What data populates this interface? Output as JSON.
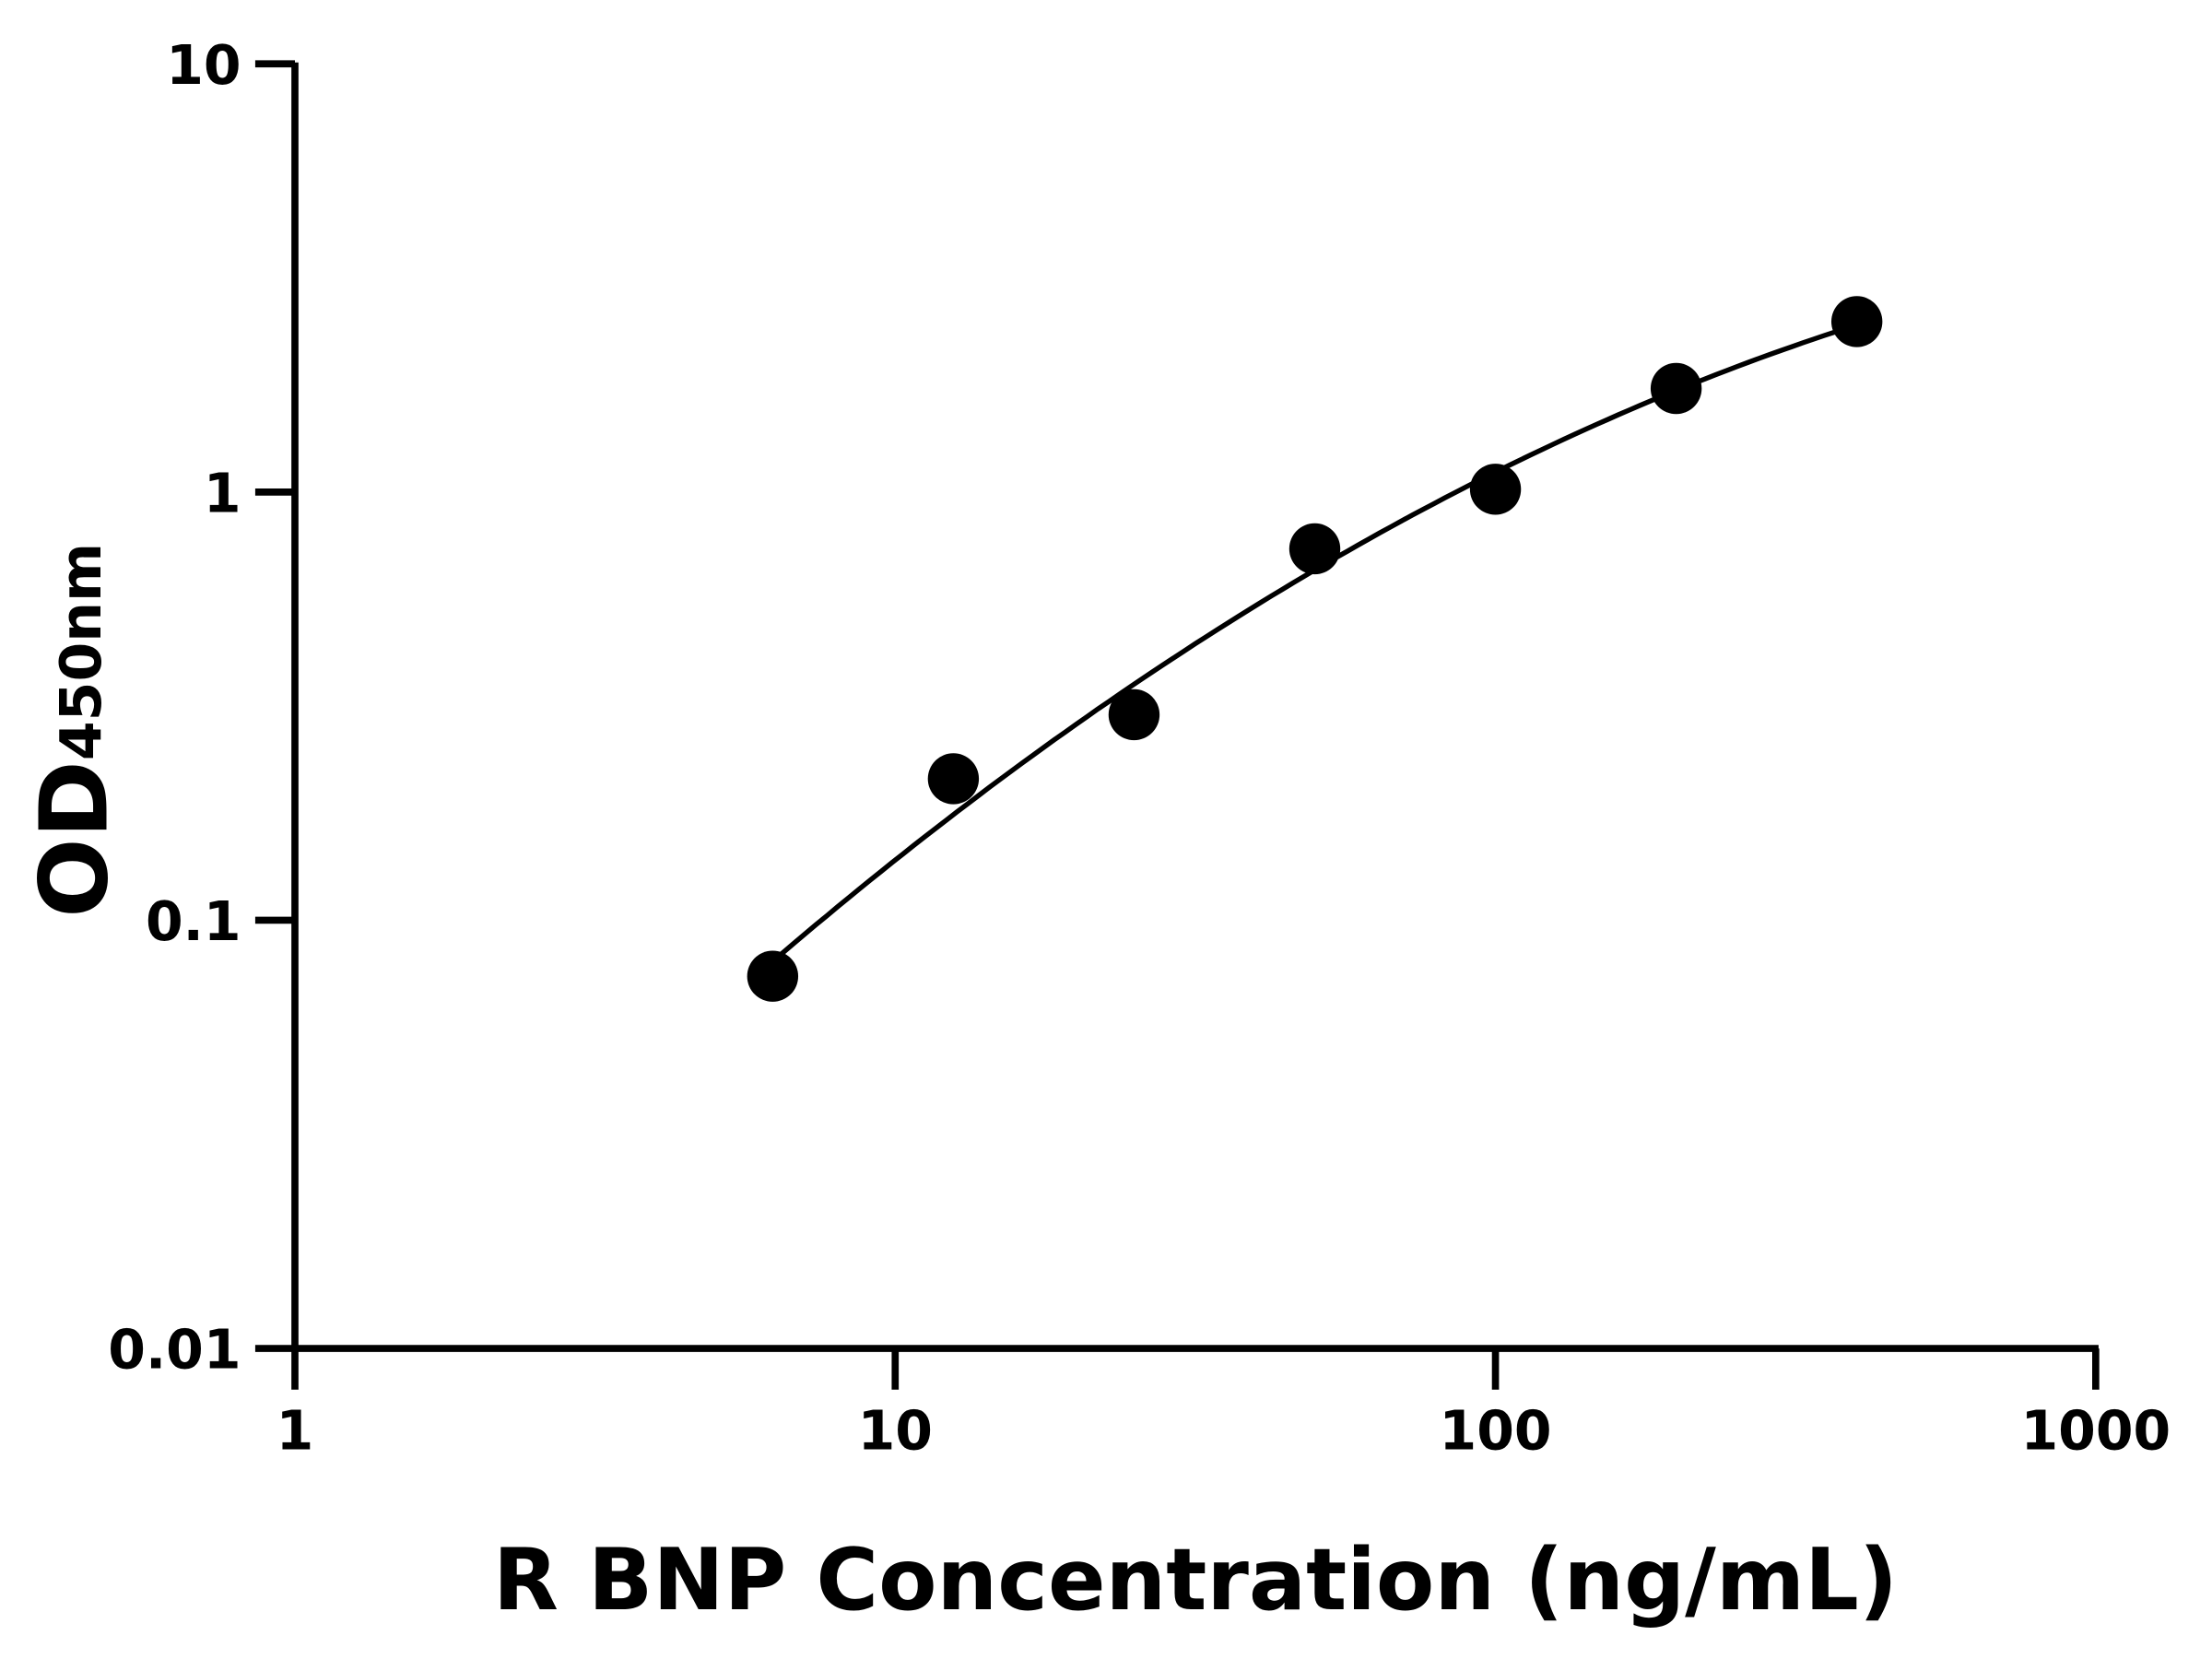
{
  "chart_data": {
    "type": "scatter",
    "title": "",
    "xlabel": "R BNP Concentration (ng/mL)",
    "ylabel_main": "OD",
    "ylabel_sub": "450nm",
    "x_scale": "log",
    "y_scale": "log",
    "xlim": [
      1,
      1000
    ],
    "ylim": [
      0.01,
      10
    ],
    "x_ticks": [
      1,
      10,
      100,
      1000
    ],
    "x_tick_labels": [
      "1",
      "10",
      "100",
      "1000"
    ],
    "y_ticks": [
      0.01,
      0.1,
      1,
      10
    ],
    "y_tick_labels": [
      "0.01",
      "0.1",
      "1",
      "10"
    ],
    "grid": false,
    "fit_curve": true,
    "series": [
      {
        "x": [
          6.25,
          12.5,
          25,
          50,
          100,
          200,
          400
        ],
        "y": [
          0.074,
          0.214,
          0.302,
          0.737,
          1.015,
          1.745,
          2.5
        ],
        "color": "#000000"
      }
    ]
  }
}
